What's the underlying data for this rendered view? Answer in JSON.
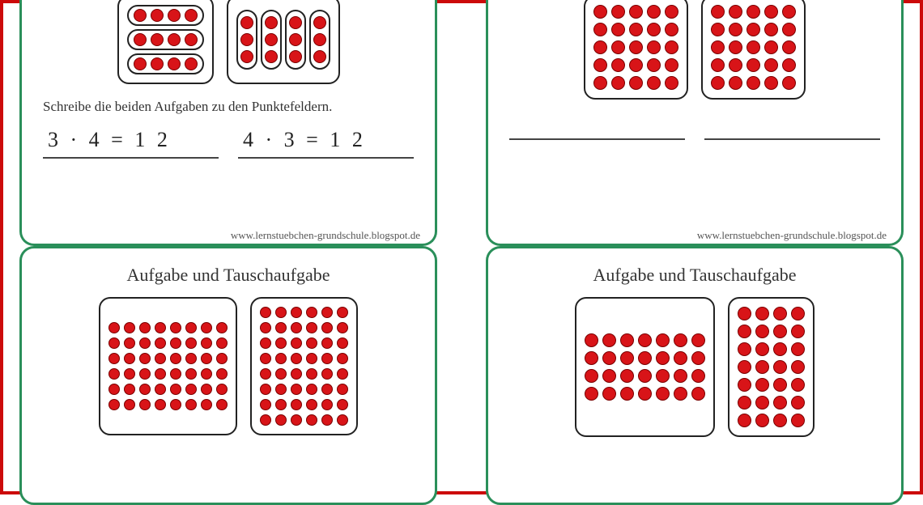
{
  "colors": {
    "dot_fill": "#d81418",
    "dot_border": "#7a0000",
    "card_border": "#2a8f5a",
    "page_border": "#cc0a0a",
    "text": "#333333",
    "line": "#444444"
  },
  "credit": "www.lernstuebchen-grundschule.blogspot.de",
  "cards": {
    "top_left": {
      "instruction": "Schreibe die beiden Aufgaben zu den Punktefeldern.",
      "example": {
        "horizontal": {
          "rows": 3,
          "cols": 4
        },
        "vertical": {
          "rows": 3,
          "cols": 4
        }
      },
      "dot_size": 16,
      "equations": [
        "3 · 4 = 1 2",
        "4 · 3 = 1 2"
      ]
    },
    "top_right": {
      "boxes": [
        {
          "rows": 5,
          "cols": 5
        },
        {
          "rows": 5,
          "cols": 5
        }
      ],
      "dot_size": 17
    },
    "bottom_left": {
      "title": "Aufgabe und Tauschaufgabe",
      "boxes": [
        {
          "rows": 6,
          "cols": 8
        },
        {
          "rows": 8,
          "cols": 6
        }
      ],
      "dot_size": 14
    },
    "bottom_right": {
      "title": "Aufgabe und Tauschaufgabe",
      "boxes": [
        {
          "rows": 4,
          "cols": 7
        },
        {
          "rows": 7,
          "cols": 4
        }
      ],
      "dot_size": 17
    }
  }
}
